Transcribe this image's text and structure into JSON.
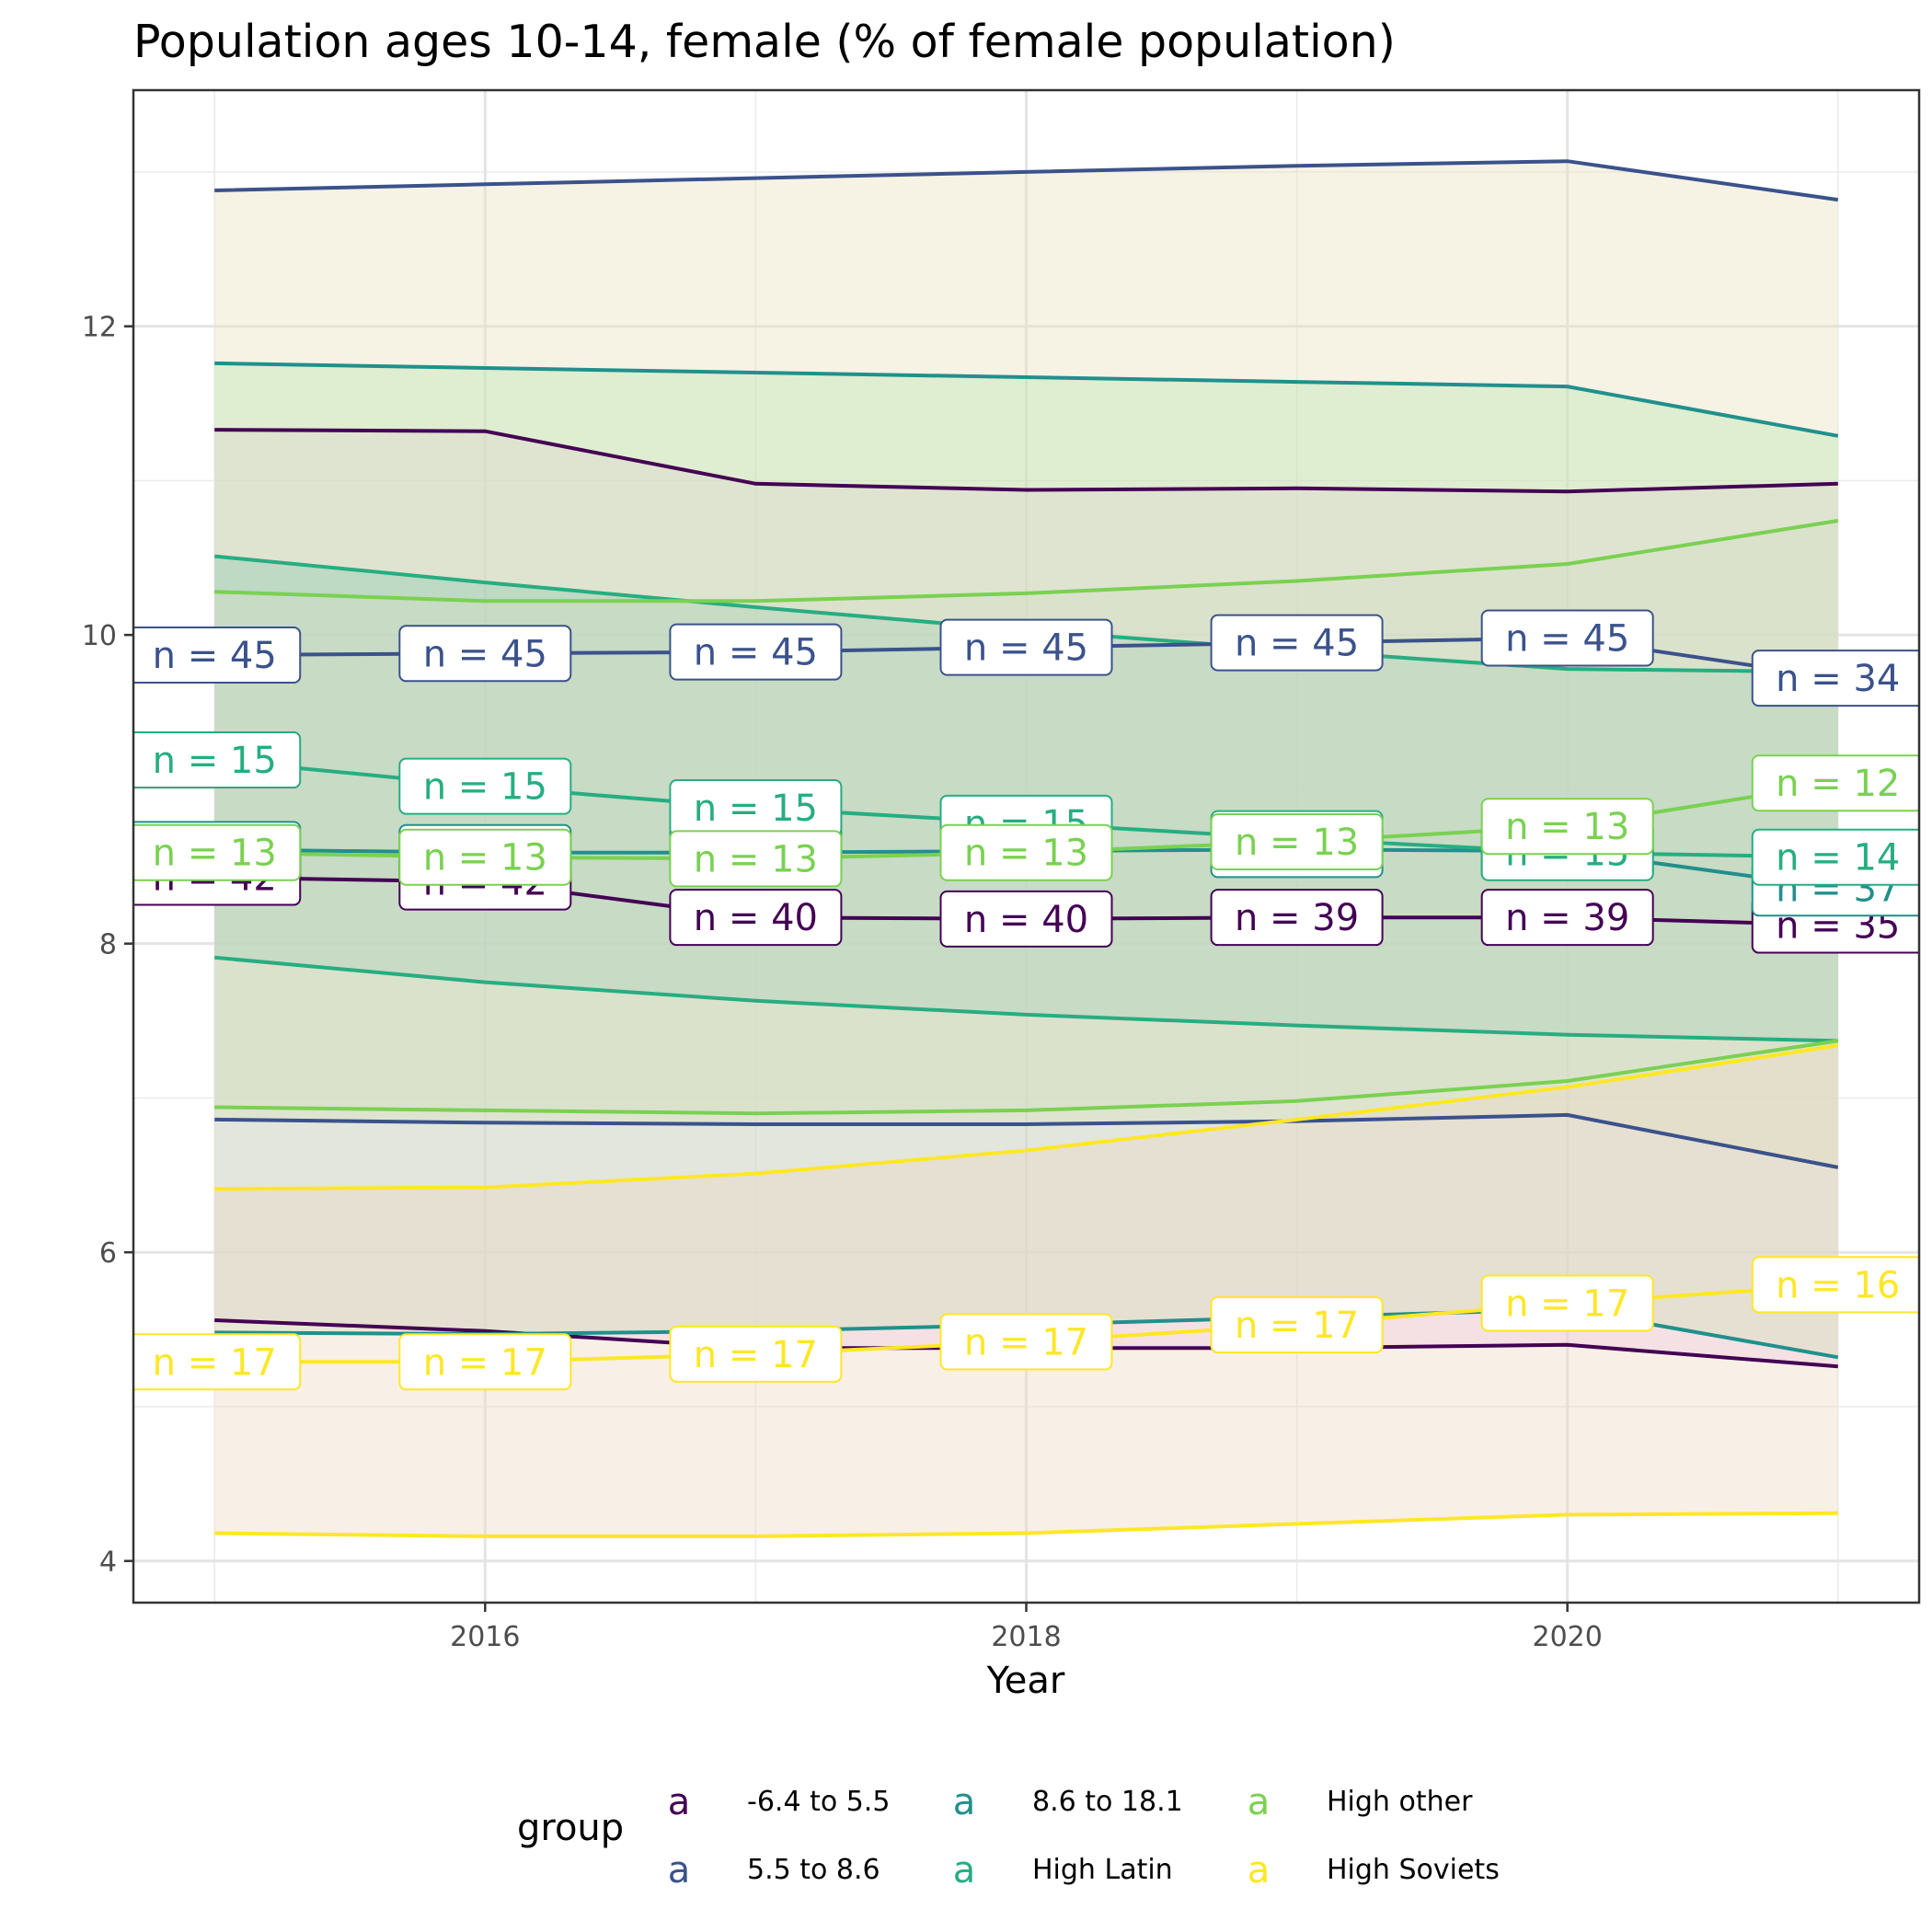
{
  "chart_data": {
    "type": "line",
    "title": "Population ages 10-14, female (% of female population)",
    "xlabel": "Year",
    "ylabel": "",
    "x": [
      2015,
      2016,
      2017,
      2018,
      2019,
      2020,
      2021
    ],
    "xticks": [
      2016,
      2018,
      2020
    ],
    "yticks": [
      4,
      6,
      8,
      10,
      12
    ],
    "xlim": [
      2014.7,
      2021.3
    ],
    "ylim": [
      3.73,
      13.53
    ],
    "grid": true,
    "legend": {
      "title": "group",
      "position": "bottom",
      "key_glyph": "a"
    },
    "series": [
      {
        "name": "-6.4 to 5.5",
        "color": "#440154",
        "mean": [
          8.43,
          8.4,
          8.17,
          8.16,
          8.17,
          8.17,
          8.12
        ],
        "lower": [
          5.56,
          5.49,
          5.38,
          5.38,
          5.38,
          5.4,
          5.26
        ],
        "upper": [
          11.33,
          11.32,
          10.98,
          10.94,
          10.95,
          10.93,
          10.98
        ],
        "n": [
          "n = 42",
          "n = 42",
          "n = 40",
          "n = 40",
          "n = 39",
          "n = 39",
          "n = 35"
        ]
      },
      {
        "name": "5.5 to 8.6",
        "color": "#3b528b",
        "mean": [
          9.87,
          9.88,
          9.89,
          9.92,
          9.95,
          9.98,
          9.72
        ],
        "lower": [
          6.86,
          6.84,
          6.83,
          6.83,
          6.85,
          6.89,
          6.55
        ],
        "upper": [
          12.88,
          12.92,
          12.96,
          13.0,
          13.04,
          13.07,
          12.82
        ],
        "n": [
          "n = 45",
          "n = 45",
          "n = 45",
          "n = 45",
          "n = 45",
          "n = 45",
          "n = 34"
        ]
      },
      {
        "name": "8.6 to 18.1",
        "color": "#21908c",
        "mean": [
          8.61,
          8.59,
          8.59,
          8.6,
          8.61,
          8.6,
          8.36
        ],
        "lower": [
          5.48,
          5.47,
          5.49,
          5.53,
          5.58,
          5.63,
          5.32
        ],
        "upper": [
          11.76,
          11.73,
          11.7,
          11.67,
          11.64,
          11.61,
          11.29
        ],
        "n": [
          "n = 42",
          "n = 42",
          "n = 42",
          "n = 42",
          "n = 40",
          "n = 40",
          "n = 37"
        ]
      },
      {
        "name": "High Latin",
        "color": "#27ad81",
        "mean": [
          9.19,
          9.02,
          8.88,
          8.78,
          8.68,
          8.59,
          8.56
        ],
        "lower": [
          7.91,
          7.75,
          7.63,
          7.54,
          7.47,
          7.41,
          7.37
        ],
        "upper": [
          10.51,
          10.34,
          10.18,
          10.03,
          9.9,
          9.78,
          9.76
        ],
        "n": [
          "n = 15",
          "n = 15",
          "n = 15",
          "n = 15",
          "n = 15",
          "n = 15",
          "n = 14"
        ]
      },
      {
        "name": "High other",
        "color": "#7ad151",
        "mean": [
          8.59,
          8.56,
          8.55,
          8.59,
          8.66,
          8.76,
          9.04
        ],
        "lower": [
          6.94,
          6.92,
          6.9,
          6.92,
          6.98,
          7.11,
          7.37
        ],
        "upper": [
          10.28,
          10.22,
          10.22,
          10.27,
          10.35,
          10.46,
          10.74
        ],
        "n": [
          "n = 13",
          "n = 13",
          "n = 13",
          "n = 13",
          "n = 13",
          "n = 13",
          "n = 12"
        ]
      },
      {
        "name": "High Soviets",
        "color": "#fde725",
        "mean": [
          5.29,
          5.29,
          5.34,
          5.42,
          5.53,
          5.67,
          5.79
        ],
        "lower": [
          4.18,
          4.16,
          4.16,
          4.18,
          4.24,
          4.3,
          4.31
        ],
        "upper": [
          6.41,
          6.42,
          6.51,
          6.66,
          6.86,
          7.07,
          7.34
        ],
        "n": [
          "n = 17",
          "n = 17",
          "n = 17",
          "n = 17",
          "n = 17",
          "n = 17",
          "n = 16"
        ]
      }
    ],
    "ribbon_colors": [
      "#f3c6f0",
      "#e9e1bd",
      "#bfe4b3",
      "#8ec9b4",
      "#d4dfc7",
      "#eed7c4"
    ]
  }
}
